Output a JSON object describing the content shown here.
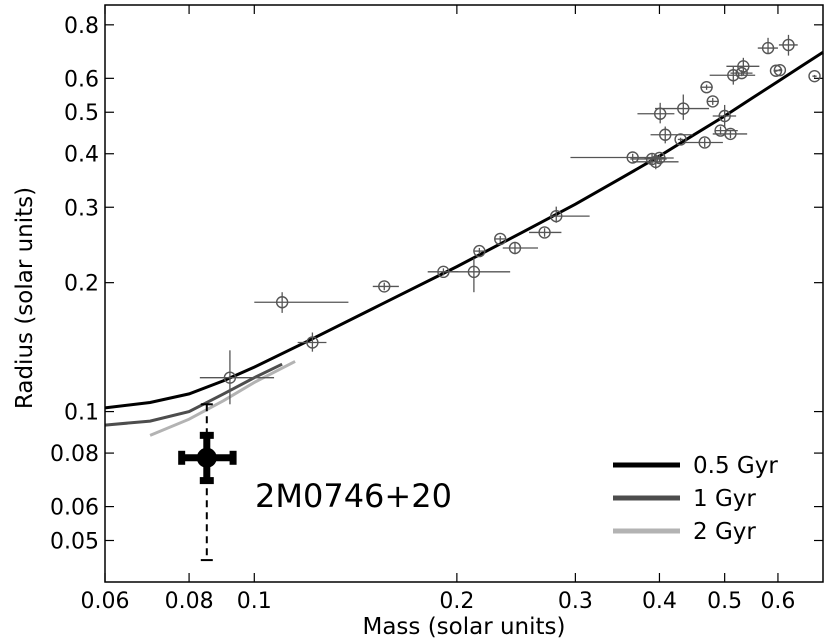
{
  "chart_data": {
    "type": "scatter",
    "scale": {
      "x": "log",
      "y": "log"
    },
    "xlabel": "Mass  (solar units)",
    "ylabel": "Radius  (solar units)",
    "xlim": [
      0.06,
      0.7
    ],
    "ylim": [
      0.04,
      0.89
    ],
    "x_ticks": [
      {
        "value": 0.06,
        "label": "0.06"
      },
      {
        "value": 0.08,
        "label": "0.08"
      },
      {
        "value": 0.1,
        "label": "0.1"
      },
      {
        "value": 0.2,
        "label": "0.2"
      },
      {
        "value": 0.3,
        "label": "0.3"
      },
      {
        "value": 0.4,
        "label": "0.4"
      },
      {
        "value": 0.5,
        "label": "0.5"
      },
      {
        "value": 0.6,
        "label": "0.6"
      }
    ],
    "y_ticks": [
      {
        "value": 0.05,
        "label": "0.05"
      },
      {
        "value": 0.06,
        "label": "0.06"
      },
      {
        "value": 0.08,
        "label": "0.08"
      },
      {
        "value": 0.1,
        "label": "0.1"
      },
      {
        "value": 0.2,
        "label": "0.2"
      },
      {
        "value": 0.3,
        "label": "0.3"
      },
      {
        "value": 0.4,
        "label": "0.4"
      },
      {
        "value": 0.5,
        "label": "0.5"
      },
      {
        "value": 0.6,
        "label": "0.6"
      },
      {
        "value": 0.8,
        "label": "0.8"
      }
    ],
    "series": [
      {
        "name": "0.5 Gyr",
        "color": "#000000",
        "points": [
          [
            0.06,
            0.102
          ],
          [
            0.07,
            0.105
          ],
          [
            0.08,
            0.11
          ],
          [
            0.09,
            0.118
          ],
          [
            0.1,
            0.127
          ],
          [
            0.12,
            0.146
          ],
          [
            0.15,
            0.174
          ],
          [
            0.2,
            0.218
          ],
          [
            0.25,
            0.262
          ],
          [
            0.3,
            0.305
          ],
          [
            0.35,
            0.35
          ],
          [
            0.4,
            0.395
          ],
          [
            0.45,
            0.443
          ],
          [
            0.5,
            0.49
          ],
          [
            0.55,
            0.54
          ],
          [
            0.6,
            0.59
          ],
          [
            0.65,
            0.64
          ],
          [
            0.7,
            0.69
          ]
        ]
      },
      {
        "name": "1 Gyr",
        "color": "#4d4d4d",
        "points": [
          [
            0.06,
            0.093
          ],
          [
            0.07,
            0.095
          ],
          [
            0.08,
            0.1
          ],
          [
            0.09,
            0.11
          ],
          [
            0.1,
            0.12
          ],
          [
            0.11,
            0.129
          ]
        ]
      },
      {
        "name": "2 Gyr",
        "color": "#b3b3b3",
        "points": [
          [
            0.07,
            0.088
          ],
          [
            0.08,
            0.096
          ],
          [
            0.09,
            0.106
          ],
          [
            0.1,
            0.117
          ],
          [
            0.115,
            0.131
          ]
        ]
      }
    ],
    "observations": [
      {
        "x": 0.092,
        "y": 0.12,
        "xerr": [
          0.009,
          0.015
        ],
        "yerr": [
          0.016,
          0.019
        ]
      },
      {
        "x": 0.11,
        "y": 0.18,
        "xerr": [
          0.01,
          0.028
        ],
        "yerr": [
          0.01,
          0.01
        ]
      },
      {
        "x": 0.122,
        "y": 0.145,
        "xerr": [
          0.006,
          0.006
        ],
        "yerr": [
          0.007,
          0.008
        ]
      },
      {
        "x": 0.156,
        "y": 0.196,
        "xerr": [
          0.006,
          0.008
        ],
        "yerr": [
          0.004,
          0.004
        ]
      },
      {
        "x": 0.191,
        "y": 0.212,
        "xerr": [
          0.01,
          0.01
        ],
        "yerr": [
          0.004,
          0.004
        ]
      },
      {
        "x": 0.212,
        "y": 0.212,
        "xerr": [
          0.02,
          0.028
        ],
        "yerr": [
          0.022,
          0.016
        ]
      },
      {
        "x": 0.216,
        "y": 0.237,
        "xerr": [
          0.004,
          0.004
        ],
        "yerr": [
          0.004,
          0.004
        ]
      },
      {
        "x": 0.232,
        "y": 0.253,
        "xerr": [
          0.004,
          0.004
        ],
        "yerr": [
          0.004,
          0.004
        ]
      },
      {
        "x": 0.244,
        "y": 0.241,
        "xerr": [
          0.01,
          0.02
        ],
        "yerr": [
          0.008,
          0.008
        ]
      },
      {
        "x": 0.27,
        "y": 0.262,
        "xerr": [
          0.014,
          0.016
        ],
        "yerr": [
          0.006,
          0.006
        ]
      },
      {
        "x": 0.281,
        "y": 0.286,
        "xerr": [
          0.006,
          0.034
        ],
        "yerr": [
          0.01,
          0.015
        ]
      },
      {
        "x": 0.365,
        "y": 0.392,
        "xerr": [
          0.07,
          0.042
        ],
        "yerr": [
          0.008,
          0.008
        ]
      },
      {
        "x": 0.39,
        "y": 0.389,
        "xerr": [
          0.028,
          0.02
        ],
        "yerr": [
          0.012,
          0.012
        ]
      },
      {
        "x": 0.395,
        "y": 0.383,
        "xerr": [
          0.03,
          0.032
        ],
        "yerr": [
          0.015,
          0.015
        ]
      },
      {
        "x": 0.4,
        "y": 0.391,
        "xerr": [
          0.02,
          0.02
        ],
        "yerr": [
          0.008,
          0.008
        ]
      },
      {
        "x": 0.401,
        "y": 0.496,
        "xerr": [
          0.03,
          0.02
        ],
        "yerr": [
          0.025,
          0.03
        ]
      },
      {
        "x": 0.408,
        "y": 0.443,
        "xerr": [
          0.02,
          0.04
        ],
        "yerr": [
          0.02,
          0.02
        ]
      },
      {
        "x": 0.43,
        "y": 0.432,
        "xerr": [
          0.004,
          0.004
        ],
        "yerr": [
          0.004,
          0.004
        ]
      },
      {
        "x": 0.434,
        "y": 0.51,
        "xerr": [
          0.04,
          0.04
        ],
        "yerr": [
          0.03,
          0.04
        ]
      },
      {
        "x": 0.467,
        "y": 0.425,
        "xerr": [
          0.03,
          0.03
        ],
        "yerr": [
          0.01,
          0.01
        ]
      },
      {
        "x": 0.48,
        "y": 0.53,
        "xerr": [
          0.01,
          0.01
        ],
        "yerr": [
          0.01,
          0.01
        ]
      },
      {
        "x": 0.493,
        "y": 0.453,
        "xerr": [
          0.01,
          0.03
        ],
        "yerr": [
          0.01,
          0.01
        ]
      },
      {
        "x": 0.5,
        "y": 0.49,
        "xerr": [
          0.02,
          0.02
        ],
        "yerr": [
          0.03,
          0.03
        ]
      },
      {
        "x": 0.51,
        "y": 0.445,
        "xerr": [
          0.03,
          0.03
        ],
        "yerr": [
          0.01,
          0.01
        ]
      },
      {
        "x": 0.47,
        "y": 0.572,
        "xerr": [
          0.01,
          0.01
        ],
        "yerr": [
          0.008,
          0.008
        ]
      },
      {
        "x": 0.515,
        "y": 0.61,
        "xerr": [
          0.04,
          0.04
        ],
        "yerr": [
          0.03,
          0.03
        ]
      },
      {
        "x": 0.53,
        "y": 0.617,
        "xerr": [
          0.02,
          0.02
        ],
        "yerr": [
          0.01,
          0.01
        ]
      },
      {
        "x": 0.533,
        "y": 0.64,
        "xerr": [
          0.03,
          0.03
        ],
        "yerr": [
          0.03,
          0.03
        ]
      },
      {
        "x": 0.58,
        "y": 0.706,
        "xerr": [
          0.02,
          0.02
        ],
        "yerr": [
          0.02,
          0.04
        ]
      },
      {
        "x": 0.596,
        "y": 0.625,
        "xerr": [
          0.005,
          0.005
        ],
        "yerr": [
          0.004,
          0.004
        ]
      },
      {
        "x": 0.604,
        "y": 0.627,
        "xerr": [
          0.005,
          0.005
        ],
        "yerr": [
          0.004,
          0.004
        ]
      },
      {
        "x": 0.622,
        "y": 0.718,
        "xerr": [
          0.02,
          0.02
        ],
        "yerr": [
          0.04,
          0.04
        ]
      },
      {
        "x": 0.68,
        "y": 0.607,
        "xerr": [
          0.005,
          0.005
        ],
        "yerr": [
          0.004,
          0.004
        ]
      }
    ],
    "highlight": {
      "label": "2M0746+20",
      "x": 0.085,
      "y": 0.078,
      "xerr": [
        0.007,
        0.008
      ],
      "yerr": [
        0.009,
        0.01
      ],
      "dashed_range": [
        0.045,
        0.104
      ]
    },
    "legend": {
      "position": "bottom-right",
      "entries": [
        "0.5 Gyr",
        "1 Gyr",
        "2 Gyr"
      ]
    }
  }
}
